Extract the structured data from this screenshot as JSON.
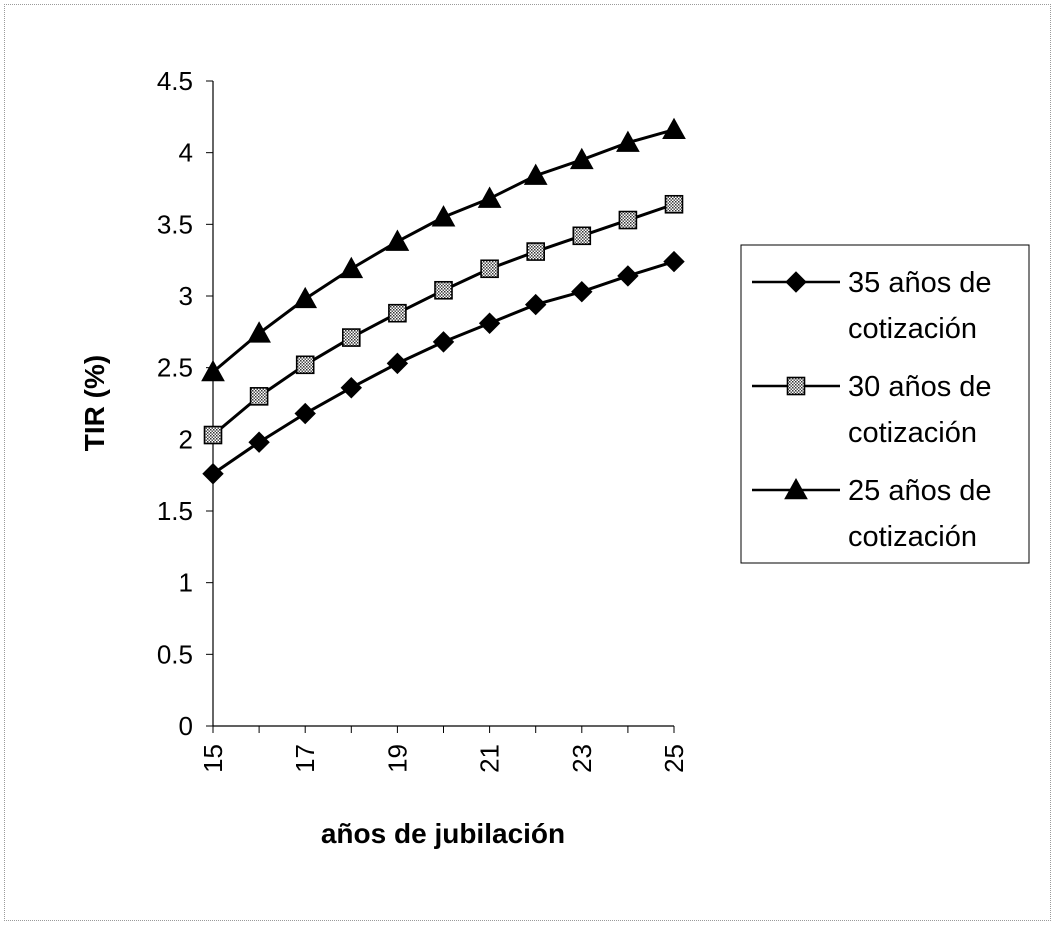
{
  "chart_data": {
    "type": "line",
    "title": "",
    "xlabel": "años de jubilación",
    "ylabel": "TIR (%)",
    "x": [
      15,
      16,
      17,
      18,
      19,
      20,
      21,
      22,
      23,
      24,
      25
    ],
    "x_tick_labels": [
      "15",
      "17",
      "19",
      "21",
      "23",
      "25"
    ],
    "y_tick_labels": [
      "0",
      "0.5",
      "1",
      "1.5",
      "2",
      "2.5",
      "3",
      "3.5",
      "4",
      "4.5"
    ],
    "xlim": [
      15,
      25
    ],
    "ylim": [
      0,
      4.5
    ],
    "grid": false,
    "legend_position": "right",
    "series": [
      {
        "name_lines": [
          "35 años de",
          "cotización"
        ],
        "marker": "diamond",
        "values": [
          1.76,
          1.98,
          2.18,
          2.36,
          2.53,
          2.68,
          2.81,
          2.94,
          3.03,
          3.14,
          3.24
        ]
      },
      {
        "name_lines": [
          "30 años de",
          "cotización"
        ],
        "marker": "square",
        "values": [
          2.03,
          2.3,
          2.52,
          2.71,
          2.88,
          3.04,
          3.19,
          3.31,
          3.42,
          3.53,
          3.64
        ]
      },
      {
        "name_lines": [
          "25 años de",
          "cotización"
        ],
        "marker": "triangle",
        "values": [
          2.47,
          2.74,
          2.98,
          3.19,
          3.38,
          3.55,
          3.68,
          3.84,
          3.95,
          4.07,
          4.16
        ]
      }
    ]
  }
}
